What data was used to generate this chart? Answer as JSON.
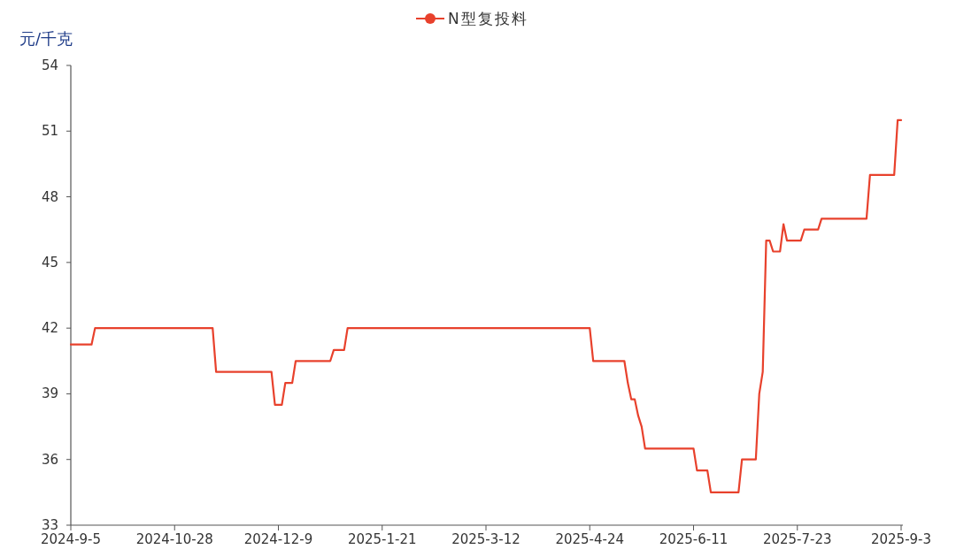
{
  "chart_data": {
    "type": "line",
    "ylabel": "元/千克",
    "categories": [
      "2024-9-5",
      null,
      null,
      null,
      null,
      null,
      null,
      null,
      null,
      null,
      null,
      null,
      null,
      null,
      null,
      null,
      null,
      null,
      null,
      null,
      null,
      null,
      null,
      null,
      null,
      null,
      null,
      null,
      null,
      null,
      "2024-10-28",
      null,
      null,
      null,
      null,
      null,
      null,
      null,
      null,
      null,
      null,
      null,
      null,
      null,
      null,
      null,
      null,
      null,
      null,
      null,
      null,
      null,
      null,
      null,
      null,
      null,
      null,
      null,
      null,
      null,
      "2024-12-9",
      null,
      null,
      null,
      null,
      null,
      null,
      null,
      null,
      null,
      null,
      null,
      null,
      null,
      null,
      null,
      null,
      null,
      null,
      null,
      null,
      null,
      null,
      null,
      null,
      null,
      null,
      null,
      null,
      null,
      "2025-1-21",
      null,
      null,
      null,
      null,
      null,
      null,
      null,
      null,
      null,
      null,
      null,
      null,
      null,
      null,
      null,
      null,
      null,
      null,
      null,
      null,
      null,
      null,
      null,
      null,
      null,
      null,
      null,
      null,
      null,
      "2025-3-12",
      null,
      null,
      null,
      null,
      null,
      null,
      null,
      null,
      null,
      null,
      null,
      null,
      null,
      null,
      null,
      null,
      null,
      null,
      null,
      null,
      null,
      null,
      null,
      null,
      null,
      null,
      null,
      null,
      null,
      "2025-4-24",
      null,
      null,
      null,
      null,
      null,
      null,
      null,
      null,
      null,
      null,
      null,
      null,
      null,
      null,
      null,
      null,
      null,
      null,
      null,
      null,
      null,
      null,
      null,
      null,
      null,
      null,
      null,
      null,
      null,
      "2025-6-11",
      null,
      null,
      null,
      null,
      null,
      null,
      null,
      null,
      null,
      null,
      null,
      null,
      null,
      null,
      null,
      null,
      null,
      null,
      null,
      null,
      null,
      null,
      null,
      null,
      null,
      null,
      null,
      null,
      null,
      "2025-7-23",
      null,
      null,
      null,
      null,
      null,
      null,
      null,
      null,
      null,
      null,
      null,
      null,
      null,
      null,
      null,
      null,
      null,
      null,
      null,
      null,
      null,
      null,
      null,
      null,
      null,
      null,
      null,
      null,
      null,
      "2025-9-3"
    ],
    "series": [
      {
        "name": "N型复投料",
        "color": "#e8412c",
        "values": [
          41.25,
          41.25,
          41.25,
          41.25,
          41.25,
          41.25,
          41.25,
          42,
          42,
          42,
          42,
          42,
          42,
          42,
          42,
          42,
          42,
          42,
          42,
          42,
          42,
          42,
          42,
          42,
          42,
          42,
          42,
          42,
          42,
          42,
          42,
          42,
          42,
          42,
          42,
          42,
          42,
          42,
          42,
          42,
          42,
          42,
          40,
          40,
          40,
          40,
          40,
          40,
          40,
          40,
          40,
          40,
          40,
          40,
          40,
          40,
          40,
          40,
          40,
          38.5,
          38.5,
          38.5,
          39.5,
          39.5,
          39.5,
          40.5,
          40.5,
          40.5,
          40.5,
          40.5,
          40.5,
          40.5,
          40.5,
          40.5,
          40.5,
          40.5,
          41,
          41,
          41,
          41,
          42,
          42,
          42,
          42,
          42,
          42,
          42,
          42,
          42,
          42,
          42,
          42,
          42,
          42,
          42,
          42,
          42,
          42,
          42,
          42,
          42,
          42,
          42,
          42,
          42,
          42,
          42,
          42,
          42,
          42,
          42,
          42,
          42,
          42,
          42,
          42,
          42,
          42,
          42,
          42,
          42,
          42,
          42,
          42,
          42,
          42,
          42,
          42,
          42,
          42,
          42,
          42,
          42,
          42,
          42,
          42,
          42,
          42,
          42,
          42,
          42,
          42,
          42,
          42,
          42,
          42,
          42,
          42,
          42,
          42,
          42,
          40.5,
          40.5,
          40.5,
          40.5,
          40.5,
          40.5,
          40.5,
          40.5,
          40.5,
          40.5,
          39.5,
          38.75,
          38.75,
          38,
          37.5,
          36.5,
          36.5,
          36.5,
          36.5,
          36.5,
          36.5,
          36.5,
          36.5,
          36.5,
          36.5,
          36.5,
          36.5,
          36.5,
          36.5,
          36.5,
          35.5,
          35.5,
          35.5,
          35.5,
          34.5,
          34.5,
          34.5,
          34.5,
          34.5,
          34.5,
          34.5,
          34.5,
          34.5,
          36,
          36,
          36,
          36,
          36,
          39,
          40,
          46,
          46,
          45.5,
          45.5,
          45.5,
          46.75,
          46,
          46,
          46,
          46,
          46,
          46.5,
          46.5,
          46.5,
          46.5,
          46.5,
          47,
          47,
          47,
          47,
          47,
          47,
          47,
          47,
          47,
          47,
          47,
          47,
          47,
          47,
          49,
          49,
          49,
          49,
          49,
          49,
          49,
          49,
          51.5,
          51.5
        ]
      }
    ],
    "ylim": [
      33,
      54
    ],
    "yticks": [
      33,
      36,
      39,
      42,
      45,
      48,
      51,
      54
    ],
    "grid": false,
    "legend": "top",
    "line_style": "solid",
    "marker": "none"
  }
}
